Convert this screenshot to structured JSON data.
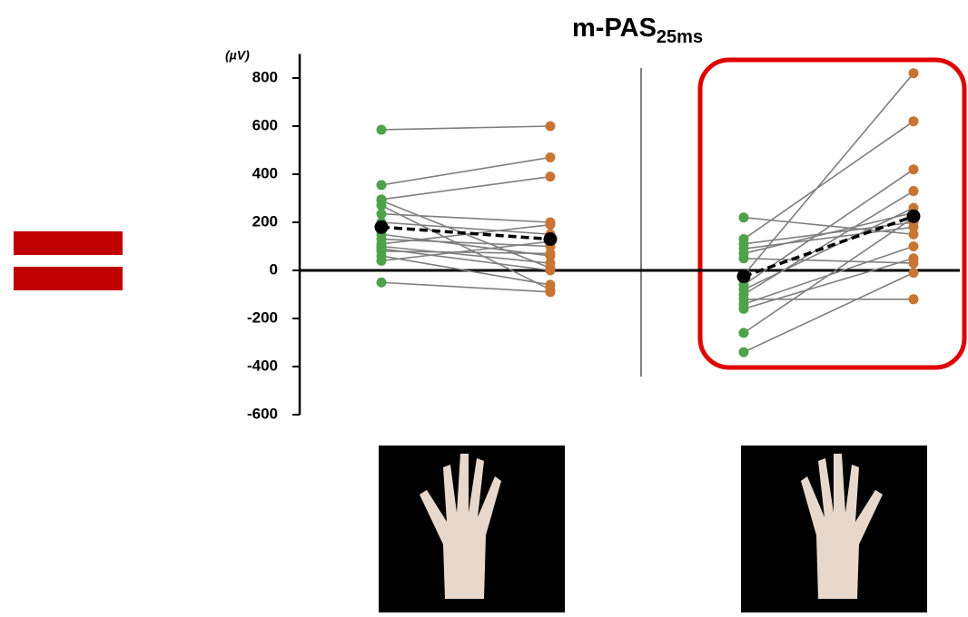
{
  "chart_data": {
    "type": "paired",
    "title": "m-PAS",
    "title_subscript": "25ms",
    "y_label": "(µV)",
    "ylim": [
      -600,
      900
    ],
    "yticks": [
      -600,
      -400,
      -200,
      0,
      200,
      400,
      600,
      800
    ],
    "pre_color": "#4ea24a",
    "post_color": "#c87533",
    "line_color": "#7f7f7f",
    "mean_color": "#000000",
    "groups": [
      {
        "pre": [
          585,
          355,
          295,
          290,
          270,
          235,
          200,
          150,
          130,
          110,
          100,
          90,
          80,
          60,
          40,
          -50
        ],
        "post": [
          600,
          470,
          390,
          10,
          -80,
          200,
          150,
          60,
          100,
          190,
          30,
          0,
          70,
          -60,
          120,
          -90
        ],
        "mean": [
          180,
          130
        ]
      },
      {
        "pre": [
          220,
          130,
          110,
          90,
          70,
          50,
          -20,
          -60,
          -80,
          -100,
          -120,
          -140,
          -160,
          -260,
          -340
        ],
        "post": [
          150,
          620,
          200,
          180,
          240,
          30,
          820,
          420,
          260,
          330,
          -120,
          100,
          50,
          220,
          -10
        ],
        "mean": [
          -25,
          225
        ]
      }
    ]
  }
}
